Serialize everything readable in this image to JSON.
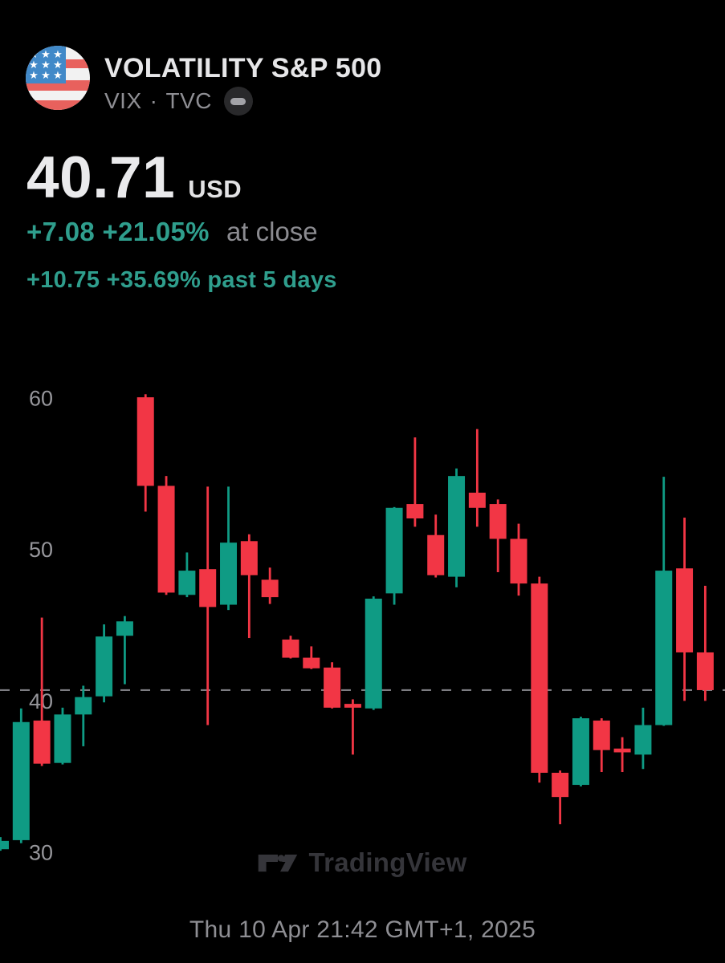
{
  "header": {
    "title": "VOLATILITY S&P 500",
    "symbol": "VIX",
    "separator": "·",
    "exchange": "TVC",
    "flag": "us-flag",
    "badge": "minus-badge"
  },
  "quote": {
    "price": "40.71",
    "currency": "USD",
    "change": "+7.08 +21.05%",
    "change_note": "at close",
    "period_change": "+10.75 +35.69% past 5 days",
    "up_text_color": "#2f9e8d"
  },
  "watermark": {
    "label": "TradingView",
    "color": "#35353a"
  },
  "footer": {
    "timestamp": "Thu 10 Apr 21:42 GMT+1, 2025"
  },
  "chart_data": {
    "type": "candlestick",
    "title": "VIX daily candles",
    "y_ticks": [
      60,
      50,
      40,
      30
    ],
    "ylim": [
      29.5,
      62.5
    ],
    "grid": false,
    "legend": "none",
    "axis_label_color": "#96969b",
    "up_color": "#0f9b84",
    "down_color": "#f23645",
    "price_line": {
      "value": 40.71,
      "style": "dashed",
      "color": "#7d7d82"
    },
    "columns": [
      "open",
      "high",
      "low",
      "close"
    ],
    "candles": [
      [
        30.2,
        31.0,
        30.1,
        30.75
      ],
      [
        30.8,
        39.5,
        30.6,
        38.6
      ],
      [
        38.7,
        45.5,
        35.7,
        35.85
      ],
      [
        35.9,
        39.55,
        35.8,
        39.1
      ],
      [
        39.1,
        41.0,
        37.0,
        40.25
      ],
      [
        40.3,
        45.05,
        39.9,
        44.25
      ],
      [
        44.3,
        45.6,
        41.1,
        45.25
      ],
      [
        60.05,
        60.25,
        52.5,
        54.2
      ],
      [
        54.2,
        54.85,
        47.0,
        47.15
      ],
      [
        47.0,
        49.8,
        46.85,
        48.6
      ],
      [
        48.7,
        54.15,
        38.4,
        46.2
      ],
      [
        46.35,
        54.15,
        46.0,
        50.45
      ],
      [
        50.55,
        51.0,
        44.15,
        48.3
      ],
      [
        48.0,
        48.8,
        46.4,
        46.85
      ],
      [
        44.05,
        44.3,
        42.8,
        42.85
      ],
      [
        42.85,
        43.6,
        42.1,
        42.15
      ],
      [
        42.2,
        42.55,
        39.5,
        39.55
      ],
      [
        39.8,
        40.1,
        36.45,
        39.55
      ],
      [
        39.5,
        46.9,
        39.4,
        46.75
      ],
      [
        47.1,
        52.8,
        46.35,
        52.75
      ],
      [
        53.0,
        57.4,
        51.5,
        52.05
      ],
      [
        50.95,
        52.3,
        48.15,
        48.3
      ],
      [
        48.2,
        55.35,
        47.5,
        54.85
      ],
      [
        53.75,
        57.95,
        51.5,
        52.75
      ],
      [
        53.0,
        53.3,
        48.5,
        50.7
      ],
      [
        50.7,
        51.7,
        46.95,
        47.75
      ],
      [
        47.75,
        48.2,
        34.6,
        35.25
      ],
      [
        35.25,
        35.4,
        31.85,
        33.65
      ],
      [
        34.45,
        38.95,
        34.35,
        38.85
      ],
      [
        38.7,
        38.85,
        35.3,
        36.75
      ],
      [
        36.85,
        37.6,
        35.3,
        36.6
      ],
      [
        36.45,
        39.55,
        35.5,
        38.4
      ],
      [
        38.4,
        54.8,
        38.35,
        48.6
      ],
      [
        48.75,
        52.1,
        40.0,
        43.2
      ],
      [
        43.2,
        47.6,
        40.0,
        40.71
      ]
    ]
  }
}
